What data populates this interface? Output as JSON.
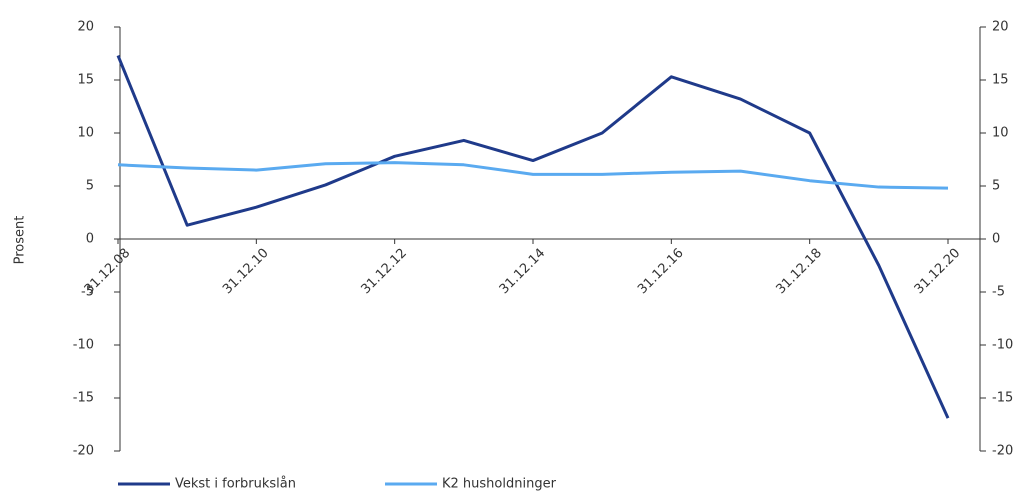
{
  "chart_data": {
    "type": "line",
    "y_label": "Prosent",
    "categories": [
      "31.12.08",
      null,
      "31.12.10",
      null,
      "31.12.12",
      null,
      "31.12.14",
      null,
      "31.12.16",
      null,
      "31.12.18",
      null,
      "31.12.20"
    ],
    "series": [
      {
        "name": "Vekst i forbrukslån",
        "color": "#1f3a8a",
        "values": [
          17.3,
          1.3,
          3.0,
          5.1,
          7.8,
          9.3,
          7.4,
          10.0,
          15.3,
          13.2,
          10.0,
          -2.5,
          -16.9
        ]
      },
      {
        "name": "K2 husholdninger",
        "color": "#5aaaf0",
        "values": [
          7.0,
          6.7,
          6.5,
          7.1,
          7.2,
          7.0,
          6.1,
          6.1,
          6.3,
          6.4,
          5.5,
          4.9,
          4.8
        ]
      }
    ],
    "ylim": [
      -20,
      20
    ],
    "yticks": [
      -20,
      -15,
      -10,
      -5,
      0,
      5,
      10,
      15,
      20
    ],
    "y2lim": [
      -20,
      20
    ],
    "y2ticks": [
      -20,
      -15,
      -10,
      -5,
      0,
      5,
      10,
      15,
      20
    ],
    "legend": "bottom-left"
  }
}
